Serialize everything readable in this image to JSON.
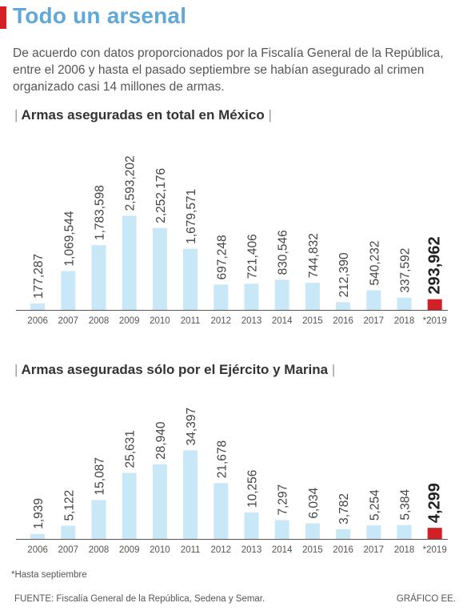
{
  "header": {
    "title": "Todo un arsenal",
    "intro": "De acuerdo con datos proporcionados por la Fiscalía General de la República, entre el 2006 y hasta el pasado septiembre se habían asegurado al crimen organizado casi 14 millones de armas."
  },
  "colors": {
    "bar": "#c9e8f7",
    "highlight": "#d32027",
    "title": "#5fa8d8"
  },
  "chart_data": [
    {
      "type": "bar",
      "title": "Armas aseguradas en total en México",
      "categories": [
        "2006",
        "2007",
        "2008",
        "2009",
        "2010",
        "2011",
        "2012",
        "2013",
        "2014",
        "2015",
        "2016",
        "2017",
        "2018",
        "*2019"
      ],
      "values": [
        177287,
        1069544,
        1783598,
        2593202,
        2252176,
        1679571,
        697248,
        721406,
        830546,
        744832,
        212390,
        540232,
        337592,
        293962
      ],
      "labels": [
        "177,287",
        "1,069,544",
        "1,783,598",
        "2,593,202",
        "2,252,176",
        "1,679,571",
        "697,248",
        "721,406",
        "830,546",
        "744,832",
        "212,390",
        "540,232",
        "337,592",
        "293,962"
      ],
      "highlight_index": 13,
      "ylim": [
        0,
        2600000
      ]
    },
    {
      "type": "bar",
      "title": "Armas aseguradas sólo por el Ejército y Marina",
      "categories": [
        "2006",
        "2007",
        "2008",
        "2009",
        "2010",
        "2011",
        "2012",
        "2013",
        "2014",
        "2015",
        "2016",
        "2017",
        "2018",
        "*2019"
      ],
      "values": [
        1939,
        5122,
        15087,
        25631,
        28940,
        34397,
        21678,
        10256,
        7297,
        6034,
        3782,
        5254,
        5384,
        4299
      ],
      "labels": [
        "1,939",
        "5,122",
        "15,087",
        "25,631",
        "28,940",
        "34,397",
        "21,678",
        "10,256",
        "7,297",
        "6,034",
        "3,782",
        "5,254",
        "5,384",
        "4,299"
      ],
      "highlight_index": 13,
      "ylim": [
        0,
        34500
      ]
    }
  ],
  "footer": {
    "note": "*Hasta septiembre",
    "source": "FUENTE: Fiscalía General de la República, Sedena y Semar.",
    "credit": "GRÁFICO EE."
  }
}
